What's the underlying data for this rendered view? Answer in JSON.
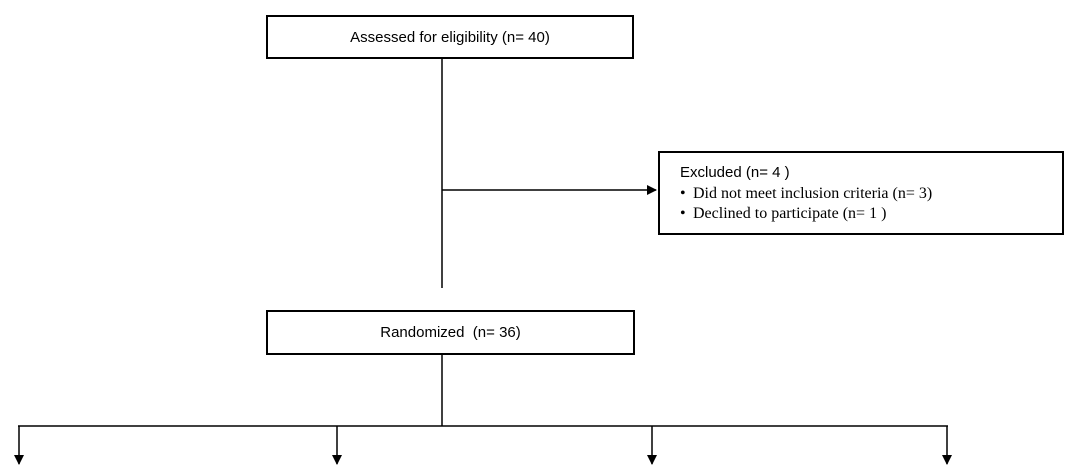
{
  "flow": {
    "assessed": "Assessed for eligibility (n= 40)",
    "excluded": {
      "title": "Excluded (n= 4 )",
      "reasons": [
        "Did not meet inclusion criteria (n= 3)",
        "Declined to participate (n= 1 )"
      ]
    },
    "randomized": "Randomized  (n= 36)"
  },
  "colors": {
    "line": "#000000",
    "box_border": "#000000",
    "background": "#ffffff"
  }
}
